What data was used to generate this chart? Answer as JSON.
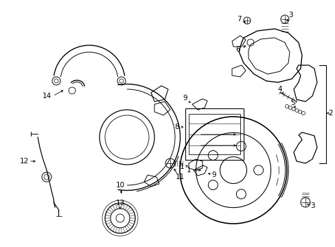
{
  "background_color": "#ffffff",
  "line_color": "#000000",
  "label_color": "#000000",
  "fig_width": 4.89,
  "fig_height": 3.6,
  "dpi": 100,
  "label_fontsize": 7.5
}
